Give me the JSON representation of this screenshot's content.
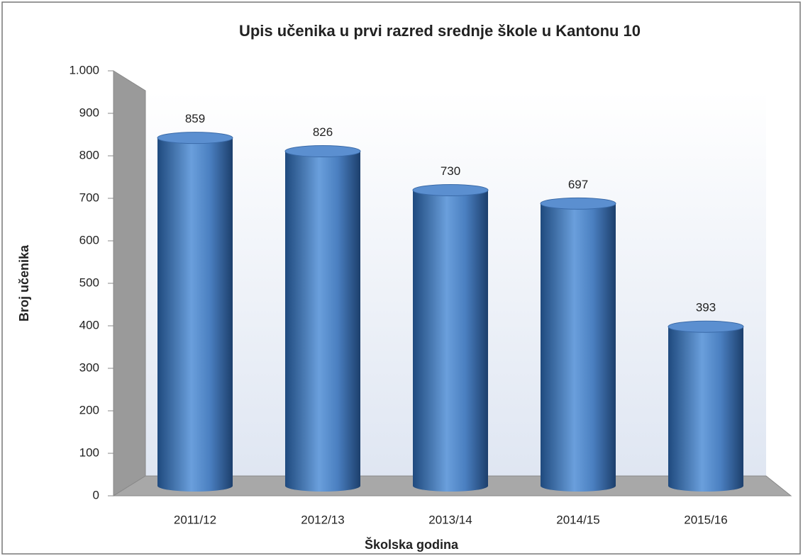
{
  "chart_data": {
    "type": "bar",
    "title": "Upis učenika u prvi razred srednje škole u Kantonu 10",
    "x_label": "Školska godina",
    "y_label": "Broj učenika",
    "categories": [
      "2011/12",
      "2012/13",
      "2013/14",
      "2014/15",
      "2015/16"
    ],
    "values": [
      859,
      826,
      730,
      697,
      393
    ],
    "color": "#4f81bd",
    "ylim": [
      0,
      1000
    ],
    "yticks": [
      0,
      100,
      200,
      300,
      400,
      500,
      600,
      700,
      800,
      900,
      {
        "value": 1000,
        "label": "1.000"
      }
    ],
    "grid": false
  }
}
